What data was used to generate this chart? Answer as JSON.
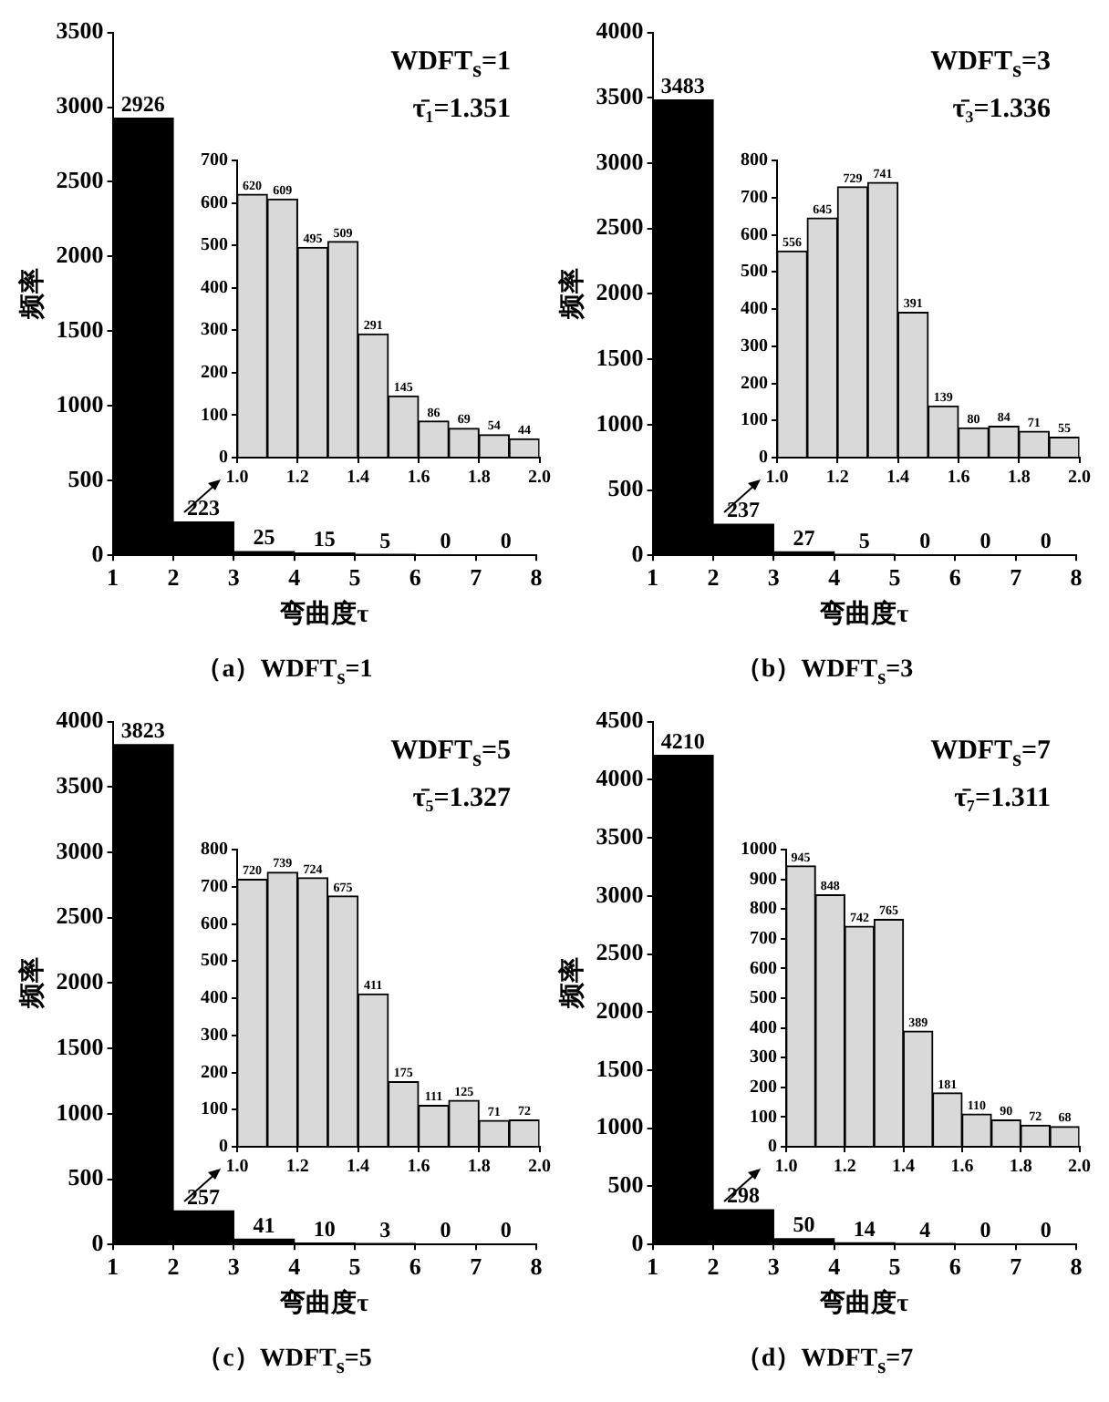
{
  "chart_data": [
    {
      "type": "histogram",
      "xlabel": "弯曲度τ",
      "ylabel": "频率",
      "bins": [
        1,
        2,
        3,
        4,
        5,
        6,
        7,
        8
      ],
      "values": [
        2926,
        223,
        25,
        15,
        5,
        0,
        0
      ],
      "color": "#000000",
      "xlim": [
        1,
        8
      ],
      "xticks": [
        1,
        2,
        3,
        4,
        5,
        6,
        7,
        8
      ],
      "ylim": [
        0,
        3500
      ],
      "yticks": [
        0,
        500,
        1000,
        1500,
        2000,
        2500,
        3000,
        3500
      ],
      "data_labels": true,
      "annotations": [
        "WDFT$_{s}$=1",
        "τ̄₁=1.351",
        "（a）WDFT$_{s}$=1"
      ]
    },
    {
      "type": "histogram",
      "bins": [
        1.0,
        1.1,
        1.2,
        1.3,
        1.4,
        1.5,
        1.6,
        1.7,
        1.8,
        1.9,
        2.0
      ],
      "values": [
        620,
        609,
        495,
        509,
        291,
        145,
        86,
        69,
        54,
        44
      ],
      "color": "#d9d9d9",
      "xlim": [
        1,
        2
      ],
      "xticks": [
        {
          "value": 1,
          "label": "1.0"
        },
        {
          "value": 1.2,
          "label": "1.2"
        },
        {
          "value": 1.4,
          "label": "1.4"
        },
        {
          "value": 1.6,
          "label": "1.6"
        },
        {
          "value": 1.8,
          "label": "1.8"
        },
        {
          "value": 2,
          "label": "2.0"
        }
      ],
      "ylim": [
        0,
        700
      ],
      "yticks": [
        0,
        100,
        200,
        300,
        400,
        500,
        600,
        700
      ],
      "data_labels": true
    },
    {
      "type": "histogram",
      "xlabel": "弯曲度τ",
      "ylabel": "频率",
      "bins": [
        1,
        2,
        3,
        4,
        5,
        6,
        7,
        8
      ],
      "values": [
        3483,
        237,
        27,
        5,
        0,
        0,
        0
      ],
      "color": "#000000",
      "xlim": [
        1,
        8
      ],
      "xticks": [
        1,
        2,
        3,
        4,
        5,
        6,
        7,
        8
      ],
      "ylim": [
        0,
        4000
      ],
      "yticks": [
        0,
        500,
        1000,
        1500,
        2000,
        2500,
        3000,
        3500,
        4000
      ],
      "data_labels": true,
      "annotations": [
        "WDFT$_{s}$=3",
        "τ̄₃=1.336",
        "（b）WDFT$_{s}$=3"
      ]
    },
    {
      "type": "histogram",
      "bins": [
        1.0,
        1.1,
        1.2,
        1.3,
        1.4,
        1.5,
        1.6,
        1.7,
        1.8,
        1.9,
        2.0
      ],
      "values": [
        556,
        645,
        729,
        741,
        391,
        139,
        80,
        84,
        71,
        55
      ],
      "color": "#d9d9d9",
      "xlim": [
        1,
        2
      ],
      "xticks": [
        {
          "value": 1,
          "label": "1.0"
        },
        {
          "value": 1.2,
          "label": "1.2"
        },
        {
          "value": 1.4,
          "label": "1.4"
        },
        {
          "value": 1.6,
          "label": "1.6"
        },
        {
          "value": 1.8,
          "label": "1.8"
        },
        {
          "value": 2,
          "label": "2.0"
        }
      ],
      "ylim": [
        0,
        800
      ],
      "yticks": [
        0,
        100,
        200,
        300,
        400,
        500,
        600,
        700,
        800
      ],
      "data_labels": true
    },
    {
      "type": "histogram",
      "xlabel": "弯曲度τ",
      "ylabel": "频率",
      "bins": [
        1,
        2,
        3,
        4,
        5,
        6,
        7,
        8
      ],
      "values": [
        3823,
        257,
        41,
        10,
        3,
        0,
        0
      ],
      "color": "#000000",
      "xlim": [
        1,
        8
      ],
      "xticks": [
        1,
        2,
        3,
        4,
        5,
        6,
        7,
        8
      ],
      "ylim": [
        0,
        4000
      ],
      "yticks": [
        0,
        500,
        1000,
        1500,
        2000,
        2500,
        3000,
        3500,
        4000
      ],
      "data_labels": true,
      "annotations": [
        "WDFT$_{s}$=5",
        "τ̄₅=1.327",
        "（c）WDFT$_{s}$=5"
      ]
    },
    {
      "type": "histogram",
      "bins": [
        1.0,
        1.1,
        1.2,
        1.3,
        1.4,
        1.5,
        1.6,
        1.7,
        1.8,
        1.9,
        2.0
      ],
      "values": [
        720,
        739,
        724,
        675,
        411,
        175,
        111,
        125,
        71,
        72
      ],
      "color": "#d9d9d9",
      "xlim": [
        1,
        2
      ],
      "xticks": [
        {
          "value": 1,
          "label": "1.0"
        },
        {
          "value": 1.2,
          "label": "1.2"
        },
        {
          "value": 1.4,
          "label": "1.4"
        },
        {
          "value": 1.6,
          "label": "1.6"
        },
        {
          "value": 1.8,
          "label": "1.8"
        },
        {
          "value": 2,
          "label": "2.0"
        }
      ],
      "ylim": [
        0,
        800
      ],
      "yticks": [
        0,
        100,
        200,
        300,
        400,
        500,
        600,
        700,
        800
      ],
      "data_labels": true
    },
    {
      "type": "histogram",
      "xlabel": "弯曲度τ",
      "ylabel": "频率",
      "bins": [
        1,
        2,
        3,
        4,
        5,
        6,
        7,
        8
      ],
      "values": [
        4210,
        298,
        50,
        14,
        4,
        0,
        0
      ],
      "color": "#000000",
      "xlim": [
        1,
        8
      ],
      "xticks": [
        1,
        2,
        3,
        4,
        5,
        6,
        7,
        8
      ],
      "ylim": [
        0,
        4500
      ],
      "yticks": [
        0,
        500,
        1000,
        1500,
        2000,
        2500,
        3000,
        3500,
        4000,
        4500
      ],
      "data_labels": true,
      "annotations": [
        "WDFT$_{s}$=7",
        "τ̄₇=1.311",
        "（d）WDFT$_{s}$=7"
      ]
    },
    {
      "type": "histogram",
      "bins": [
        1.0,
        1.1,
        1.2,
        1.3,
        1.4,
        1.5,
        1.6,
        1.7,
        1.8,
        1.9,
        2.0
      ],
      "values": [
        945,
        848,
        742,
        765,
        389,
        181,
        110,
        90,
        72,
        68
      ],
      "color": "#d9d9d9",
      "xlim": [
        1,
        2
      ],
      "xticks": [
        {
          "value": 1,
          "label": "1.0"
        },
        {
          "value": 1.2,
          "label": "1.2"
        },
        {
          "value": 1.4,
          "label": "1.4"
        },
        {
          "value": 1.6,
          "label": "1.6"
        },
        {
          "value": 1.8,
          "label": "1.8"
        },
        {
          "value": 2,
          "label": "2.0"
        }
      ],
      "ylim": [
        0,
        1000
      ],
      "yticks": [
        0,
        100,
        200,
        300,
        400,
        500,
        600,
        700,
        800,
        900,
        1000
      ],
      "data_labels": true
    }
  ]
}
